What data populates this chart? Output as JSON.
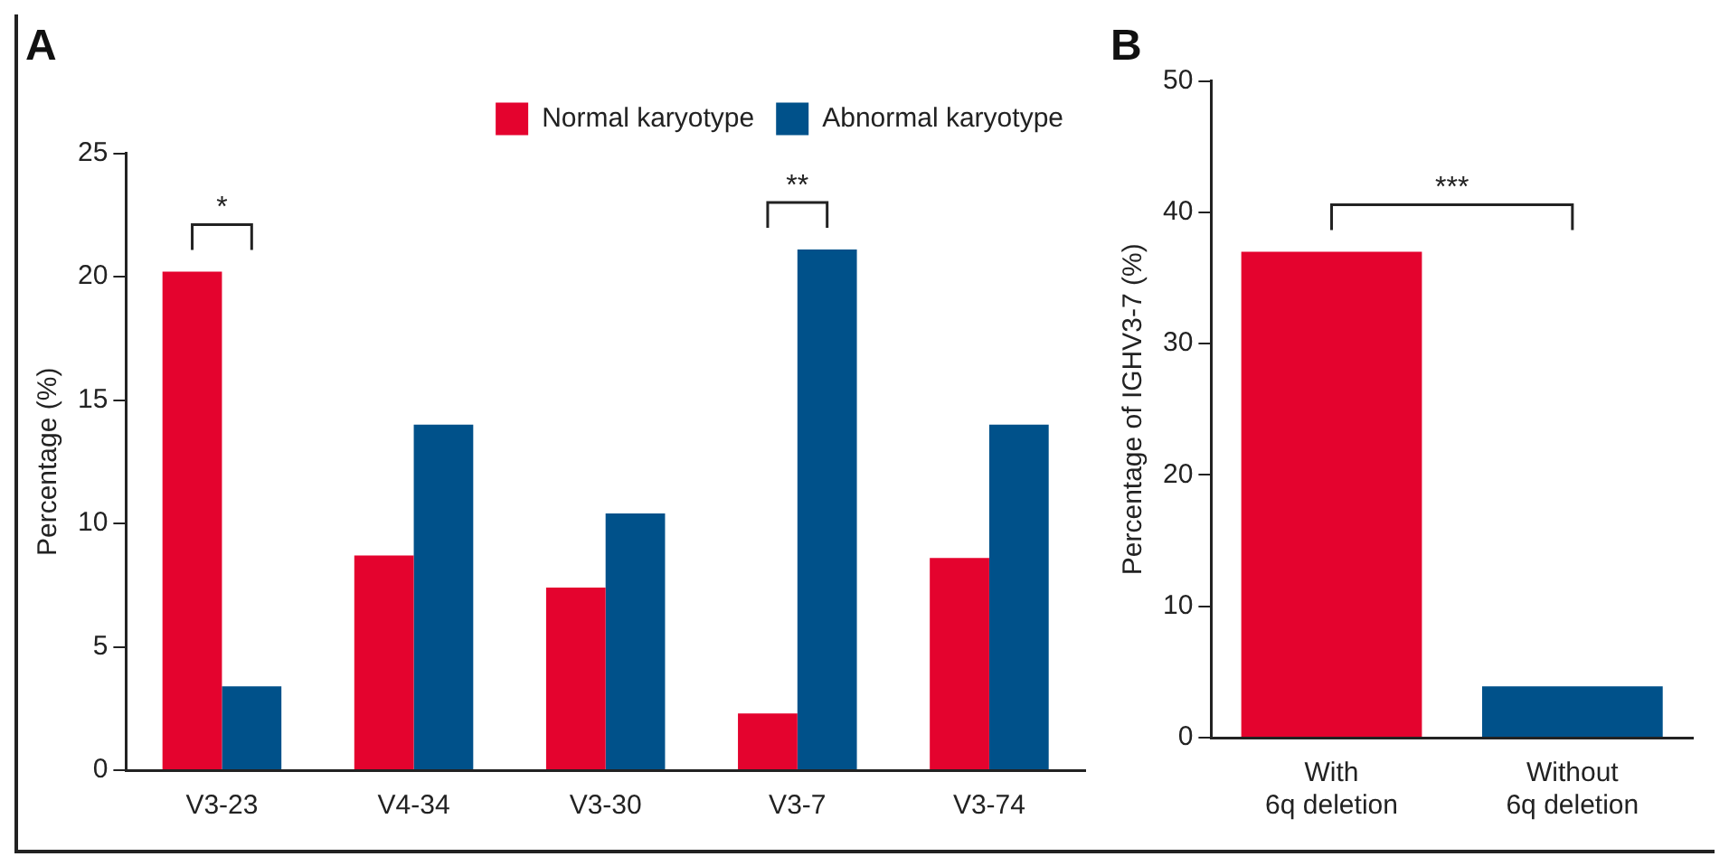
{
  "chart_data": [
    {
      "type": "bar",
      "title": "A",
      "ylabel": "Percentage (%)",
      "categories": [
        "V3-23",
        "V4-34",
        "V3-30",
        "V3-7",
        "V3-74"
      ],
      "series": [
        {
          "name": "Normal karyotype",
          "color": "#e4032e",
          "values": [
            20.2,
            8.7,
            7.4,
            2.3,
            8.6
          ]
        },
        {
          "name": "Abnormal karyotype",
          "color": "#00518a",
          "values": [
            3.4,
            14,
            10.4,
            21.1,
            14
          ]
        }
      ],
      "ylim": [
        0,
        25
      ],
      "yticks": [
        0,
        5,
        10,
        15,
        20,
        25
      ],
      "grid": false,
      "legend": "top right",
      "annotations": [
        "*",
        "**"
      ]
    },
    {
      "type": "bar",
      "title": "B",
      "ylabel": "Percentage of IGHV3-7 (%)",
      "categories": [
        "With 6q deletion",
        "Without 6q deletion"
      ],
      "series": [
        {
          "colors": [
            "#e4032e",
            "#00518a"
          ],
          "values": [
            37,
            3.9
          ]
        }
      ],
      "ylim": [
        0,
        50
      ],
      "yticks": [
        0,
        10,
        20,
        30,
        40,
        50
      ],
      "grid": false,
      "annotations": [
        "***"
      ]
    }
  ]
}
